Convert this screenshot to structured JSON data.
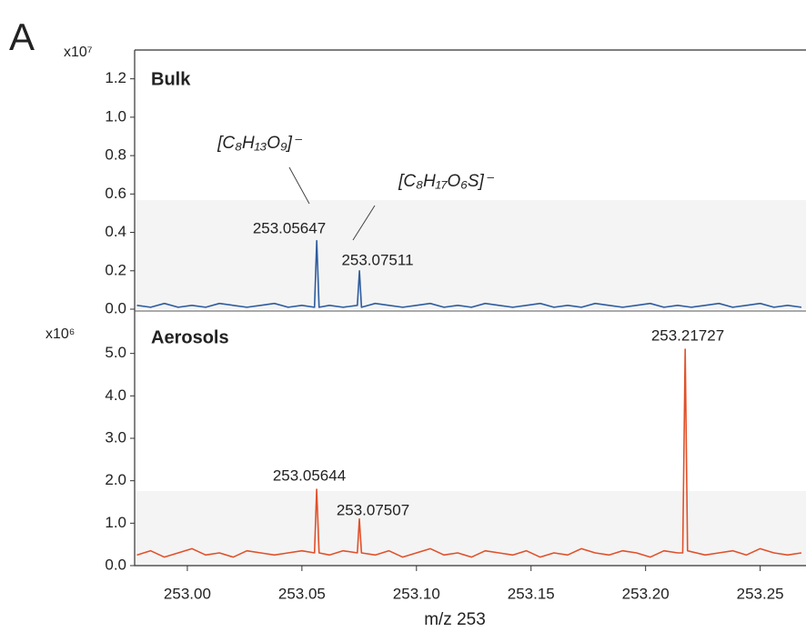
{
  "panel_label": "A",
  "chart_data": [
    {
      "type": "line",
      "y_multiplier": "x10⁷",
      "xlim": [
        252.977,
        253.27
      ],
      "ylim": [
        0,
        1.35
      ],
      "yticks": [
        {
          "value": 0,
          "label": "0.0"
        },
        0.2,
        0.4,
        0.6,
        0.8,
        {
          "value": 1,
          "label": "1.0"
        },
        1.2
      ],
      "x": [
        252.978,
        252.984,
        252.99,
        252.996,
        253.002,
        253.008,
        253.014,
        253.02,
        253.026,
        253.032,
        253.038,
        253.044,
        253.05,
        253.0555,
        253.05647,
        253.0575,
        253.062,
        253.068,
        253.0742,
        253.07511,
        253.076,
        253.082,
        253.088,
        253.094,
        253.1,
        253.106,
        253.112,
        253.118,
        253.124,
        253.13,
        253.136,
        253.142,
        253.148,
        253.154,
        253.16,
        253.166,
        253.172,
        253.178,
        253.184,
        253.19,
        253.196,
        253.202,
        253.208,
        253.214,
        253.22,
        253.226,
        253.232,
        253.238,
        253.244,
        253.25,
        253.256,
        253.262,
        253.268
      ],
      "series": [
        {
          "name": "Bulk",
          "color": "#2e5c9e",
          "values": [
            0.02,
            0.01,
            0.03,
            0.01,
            0.02,
            0.01,
            0.03,
            0.02,
            0.01,
            0.02,
            0.03,
            0.01,
            0.02,
            0.01,
            0.357,
            0.01,
            0.02,
            0.01,
            0.02,
            0.2,
            0.01,
            0.03,
            0.02,
            0.01,
            0.02,
            0.03,
            0.01,
            0.02,
            0.01,
            0.03,
            0.02,
            0.01,
            0.02,
            0.03,
            0.01,
            0.02,
            0.01,
            0.03,
            0.02,
            0.01,
            0.02,
            0.03,
            0.01,
            0.02,
            0.01,
            0.02,
            0.03,
            0.01,
            0.02,
            0.03,
            0.01,
            0.02,
            0.01
          ]
        }
      ],
      "annotations": [
        "[C₈H₁₃O₉]⁻",
        "[C₈H₁₇O₆S]⁻",
        "253.05647",
        "253.07511"
      ]
    },
    {
      "type": "line",
      "y_multiplier": "x10⁶",
      "xlim": [
        252.977,
        253.27
      ],
      "ylim": [
        0,
        6
      ],
      "yticks": [
        {
          "value": 0,
          "label": "0.0"
        },
        {
          "value": 1,
          "label": "1.0"
        },
        {
          "value": 2,
          "label": "2.0"
        },
        {
          "value": 3,
          "label": "3.0"
        },
        {
          "value": 4,
          "label": "4.0"
        },
        {
          "value": 5,
          "label": "5.0"
        }
      ],
      "xticks": [
        {
          "value": 253,
          "label": "253.00"
        },
        253.05,
        {
          "value": 253.1,
          "label": "253.10"
        },
        253.15,
        {
          "value": 253.2,
          "label": "253.20"
        },
        253.25
      ],
      "xlabel": "m/z 253",
      "x": [
        252.978,
        252.984,
        252.99,
        252.996,
        253.002,
        253.008,
        253.014,
        253.02,
        253.026,
        253.032,
        253.038,
        253.044,
        253.05,
        253.0555,
        253.05644,
        253.0575,
        253.062,
        253.068,
        253.0742,
        253.07507,
        253.076,
        253.082,
        253.088,
        253.094,
        253.1,
        253.106,
        253.112,
        253.118,
        253.124,
        253.13,
        253.136,
        253.142,
        253.148,
        253.154,
        253.16,
        253.166,
        253.172,
        253.178,
        253.184,
        253.19,
        253.196,
        253.202,
        253.208,
        253.214,
        253.2162,
        253.21727,
        253.2183,
        253.226,
        253.232,
        253.238,
        253.244,
        253.25,
        253.256,
        253.262,
        253.268
      ],
      "series": [
        {
          "name": "Aerosols",
          "color": "#e0512a",
          "values": [
            0.25,
            0.35,
            0.2,
            0.3,
            0.4,
            0.25,
            0.3,
            0.2,
            0.35,
            0.3,
            0.25,
            0.3,
            0.35,
            0.3,
            1.8,
            0.3,
            0.25,
            0.35,
            0.3,
            1.1,
            0.3,
            0.25,
            0.35,
            0.2,
            0.3,
            0.4,
            0.25,
            0.3,
            0.2,
            0.35,
            0.3,
            0.25,
            0.35,
            0.2,
            0.3,
            0.25,
            0.4,
            0.3,
            0.25,
            0.35,
            0.3,
            0.2,
            0.35,
            0.3,
            0.3,
            5.1,
            0.35,
            0.25,
            0.3,
            0.35,
            0.25,
            0.4,
            0.3,
            0.25,
            0.3
          ]
        }
      ],
      "annotations": [
        "253.21727",
        "253.05644",
        "253.07507"
      ]
    }
  ]
}
